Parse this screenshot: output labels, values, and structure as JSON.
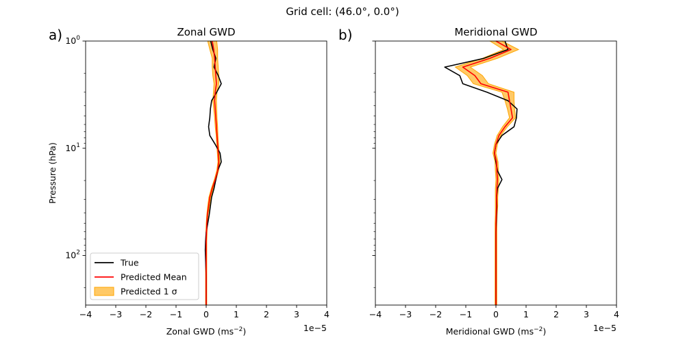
{
  "suptitle": "Grid cell: (46.0°, 0.0°)",
  "chart_data": [
    {
      "type": "line",
      "panel_label": "a)",
      "title": "Zonal GWD",
      "xlabel": "Zonal GWD (ms",
      "xlabel_sup": "−2",
      "ylabel": "Pressure (hPa)",
      "x_offset_label": "1e−5",
      "xlim": [
        -4,
        4
      ],
      "xticks": [
        "−4",
        "−3",
        "−2",
        "−1",
        "0",
        "1",
        "2",
        "3",
        "4"
      ],
      "ylim": [
        1,
        290
      ],
      "yscale": "log",
      "y_inverted": true,
      "yticks": [
        {
          "value": 1,
          "base": "10",
          "exp": "0"
        },
        {
          "value": 10,
          "base": "10",
          "exp": "1"
        },
        {
          "value": 100,
          "base": "10",
          "exp": "2"
        }
      ],
      "legend": {
        "placement": "lower-left",
        "entries": [
          "True",
          "Predicted Mean",
          "Predicted 1 σ"
        ]
      },
      "colors": {
        "true": "#000000",
        "mean": "#ff0000",
        "band": "#ffa500"
      },
      "pressure": [
        1.0,
        1.2,
        1.45,
        1.75,
        2.1,
        2.5,
        3.0,
        3.6,
        4.3,
        5.2,
        6.3,
        7.6,
        9.2,
        11.1,
        13.4,
        16.2,
        19.6,
        23.7,
        28.6,
        34.6,
        41.8,
        50.5,
        61,
        73.7,
        89,
        107.5,
        130,
        157,
        190,
        230,
        290
      ],
      "series": [
        {
          "role": "true",
          "values": [
            0.15,
            0.22,
            0.32,
            0.26,
            0.4,
            0.5,
            0.35,
            0.18,
            0.14,
            0.12,
            0.08,
            0.12,
            0.3,
            0.46,
            0.5,
            0.38,
            0.32,
            0.26,
            0.18,
            0.14,
            0.1,
            0.05,
            0.0,
            -0.02,
            -0.03,
            -0.02,
            -0.01,
            0.0,
            0.0,
            0.0,
            0.0
          ]
        },
        {
          "role": "mean",
          "values": [
            0.2,
            0.25,
            0.28,
            0.3,
            0.32,
            0.34,
            0.3,
            0.28,
            0.3,
            0.32,
            0.34,
            0.36,
            0.38,
            0.4,
            0.42,
            0.38,
            0.3,
            0.2,
            0.12,
            0.08,
            0.04,
            0.02,
            0.01,
            0.0,
            0.0,
            0.0,
            0.0,
            0.0,
            0.0,
            0.0,
            0.0
          ]
        },
        {
          "role": "band_lower",
          "values": [
            0.05,
            0.12,
            0.2,
            0.2,
            0.22,
            0.26,
            0.24,
            0.22,
            0.25,
            0.28,
            0.3,
            0.33,
            0.35,
            0.37,
            0.39,
            0.35,
            0.27,
            0.17,
            0.09,
            0.05,
            0.02,
            0.0,
            -0.01,
            -0.02,
            -0.02,
            -0.02,
            -0.02,
            -0.02,
            -0.02,
            -0.02,
            -0.02
          ]
        },
        {
          "role": "band_upper",
          "values": [
            0.35,
            0.38,
            0.38,
            0.4,
            0.42,
            0.42,
            0.36,
            0.34,
            0.35,
            0.36,
            0.38,
            0.39,
            0.41,
            0.43,
            0.45,
            0.41,
            0.33,
            0.23,
            0.15,
            0.11,
            0.06,
            0.04,
            0.03,
            0.02,
            0.02,
            0.02,
            0.02,
            0.02,
            0.02,
            0.02,
            0.02
          ]
        }
      ]
    },
    {
      "type": "line",
      "panel_label": "b)",
      "title": "Meridional GWD",
      "xlabel": "Meridional GWD (ms",
      "xlabel_sup": "−2",
      "ylabel": "",
      "x_offset_label": "1e−5",
      "xlim": [
        -4,
        4
      ],
      "xticks": [
        "−4",
        "−3",
        "−2",
        "−1",
        "0",
        "1",
        "2",
        "3",
        "4"
      ],
      "ylim": [
        1,
        290
      ],
      "yscale": "log",
      "y_inverted": true,
      "yticks": [],
      "colors": {
        "true": "#000000",
        "mean": "#ff0000",
        "band": "#ffa500"
      },
      "pressure": [
        1.0,
        1.2,
        1.45,
        1.75,
        2.1,
        2.5,
        3.0,
        3.6,
        4.3,
        5.2,
        6.3,
        7.6,
        9.2,
        11.1,
        13.4,
        16.2,
        19.6,
        23.7,
        28.6,
        34.6,
        41.8,
        50.5,
        61,
        73.7,
        89,
        107.5,
        130,
        157,
        190,
        230,
        290
      ],
      "series": [
        {
          "role": "true",
          "values": [
            0.3,
            0.4,
            -0.4,
            -1.7,
            -1.2,
            -1.1,
            -0.3,
            0.4,
            0.7,
            0.68,
            0.6,
            0.2,
            0.0,
            -0.05,
            0.0,
            0.05,
            0.2,
            0.05,
            0.02,
            0.03,
            0.02,
            0.01,
            0.0,
            0.0,
            0.0,
            0.0,
            0.0,
            0.0,
            0.0,
            0.0,
            0.0
          ]
        },
        {
          "role": "mean",
          "values": [
            0.0,
            0.5,
            -0.2,
            -1.1,
            -0.7,
            -0.5,
            0.4,
            0.45,
            0.5,
            0.55,
            0.3,
            0.1,
            0.0,
            -0.05,
            0.02,
            0.03,
            0.05,
            0.03,
            0.02,
            0.02,
            0.01,
            0.0,
            0.0,
            0.0,
            0.0,
            0.0,
            0.0,
            0.0,
            0.0,
            0.0,
            0.0
          ]
        },
        {
          "role": "band_lower",
          "values": [
            -0.2,
            0.25,
            -0.45,
            -1.35,
            -0.95,
            -0.75,
            0.2,
            0.3,
            0.38,
            0.45,
            0.22,
            0.04,
            -0.05,
            -0.1,
            -0.03,
            -0.02,
            0.0,
            -0.02,
            -0.02,
            -0.02,
            -0.02,
            -0.03,
            -0.03,
            -0.03,
            -0.03,
            -0.03,
            -0.03,
            -0.03,
            -0.03,
            -0.03,
            -0.03
          ]
        },
        {
          "role": "band_upper",
          "values": [
            0.2,
            0.75,
            0.05,
            -0.85,
            -0.45,
            -0.25,
            0.6,
            0.6,
            0.62,
            0.65,
            0.38,
            0.16,
            0.05,
            0.0,
            0.07,
            0.08,
            0.1,
            0.08,
            0.06,
            0.06,
            0.04,
            0.03,
            0.03,
            0.03,
            0.03,
            0.03,
            0.03,
            0.03,
            0.03,
            0.03,
            0.03
          ]
        }
      ]
    }
  ]
}
